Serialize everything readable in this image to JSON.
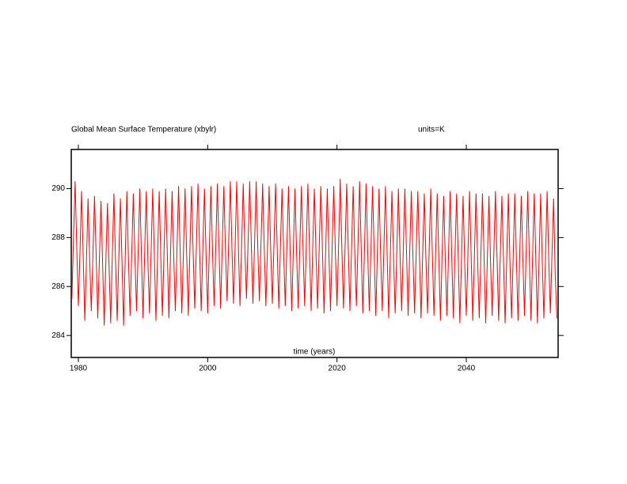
{
  "chart_data": {
    "type": "line",
    "title": "Global Mean Surface Temperature (xbylr)",
    "units": "units=K",
    "xlabel": "time (years)",
    "xlim": [
      1978.9,
      2054.2
    ],
    "xticks": [
      1980,
      2000,
      2020,
      2040
    ],
    "ylim": [
      283.1,
      291.6
    ],
    "yticks": [
      284,
      286,
      288,
      290
    ],
    "x": [
      1979,
      1979.25,
      1979.5,
      1979.75,
      1980,
      1980.25,
      1980.5,
      1980.75,
      1981,
      1981.25,
      1981.5,
      1981.75,
      1982,
      1982.25,
      1982.5,
      1982.75,
      1983,
      1983.25,
      1983.5,
      1983.75,
      1984,
      1984.25,
      1984.5,
      1984.75,
      1985,
      1985.25,
      1985.5,
      1985.75,
      1986,
      1986.25,
      1986.5,
      1986.75,
      1987,
      1987.25,
      1987.5,
      1987.75,
      1988,
      1988.25,
      1988.5,
      1988.75,
      1989,
      1989.25,
      1989.5,
      1989.75,
      1990,
      1990.25,
      1990.5,
      1990.75,
      1991,
      1991.25,
      1991.5,
      1991.75,
      1992,
      1992.25,
      1992.5,
      1992.75,
      1993,
      1993.25,
      1993.5,
      1993.75,
      1994,
      1994.25,
      1994.5,
      1994.75,
      1995,
      1995.25,
      1995.5,
      1995.75,
      1996,
      1996.25,
      1996.5,
      1996.75,
      1997,
      1997.25,
      1997.5,
      1997.75,
      1998,
      1998.25,
      1998.5,
      1998.75,
      1999,
      1999.25,
      1999.5,
      1999.75,
      2000,
      2000.25,
      2000.5,
      2000.75,
      2001,
      2001.25,
      2001.5,
      2001.75,
      2002,
      2002.25,
      2002.5,
      2002.75,
      2003,
      2003.25,
      2003.5,
      2003.75,
      2004,
      2004.25,
      2004.5,
      2004.75,
      2005,
      2005.25,
      2005.5,
      2005.75,
      2006,
      2006.25,
      2006.5,
      2006.75,
      2007,
      2007.25,
      2007.5,
      2007.75,
      2008,
      2008.25,
      2008.5,
      2008.75,
      2009,
      2009.25,
      2009.5,
      2009.75,
      2010,
      2010.25,
      2010.5,
      2010.75,
      2011,
      2011.25,
      2011.5,
      2011.75,
      2012,
      2012.25,
      2012.5,
      2012.75,
      2013,
      2013.25,
      2013.5,
      2013.75,
      2014,
      2014.25,
      2014.5,
      2014.75,
      2015,
      2015.25,
      2015.5,
      2015.75,
      2016,
      2016.25,
      2016.5,
      2016.75,
      2017,
      2017.25,
      2017.5,
      2017.75,
      2018,
      2018.25,
      2018.5,
      2018.75,
      2019,
      2019.25,
      2019.5,
      2019.75,
      2020,
      2020.25,
      2020.5,
      2020.75,
      2021,
      2021.25,
      2021.5,
      2021.75,
      2022,
      2022.25,
      2022.5,
      2022.75,
      2023,
      2023.25,
      2023.5,
      2023.75,
      2024,
      2024.25,
      2024.5,
      2024.75,
      2025,
      2025.25,
      2025.5,
      2025.75,
      2026,
      2026.25,
      2026.5,
      2026.75,
      2027,
      2027.25,
      2027.5,
      2027.75,
      2028,
      2028.25,
      2028.5,
      2028.75,
      2029,
      2029.25,
      2029.5,
      2029.75,
      2030,
      2030.25,
      2030.5,
      2030.75,
      2031,
      2031.25,
      2031.5,
      2031.75,
      2032,
      2032.25,
      2032.5,
      2032.75,
      2033,
      2033.25,
      2033.5,
      2033.75,
      2034,
      2034.25,
      2034.5,
      2034.75,
      2035,
      2035.25,
      2035.5,
      2035.75,
      2036,
      2036.25,
      2036.5,
      2036.75,
      2037,
      2037.25,
      2037.5,
      2037.75,
      2038,
      2038.25,
      2038.5,
      2038.75,
      2039,
      2039.25,
      2039.5,
      2039.75,
      2040,
      2040.25,
      2040.5,
      2040.75,
      2041,
      2041.25,
      2041.5,
      2041.75,
      2042,
      2042.25,
      2042.5,
      2042.75,
      2043,
      2043.25,
      2043.5,
      2043.75,
      2044,
      2044.25,
      2044.5,
      2044.75,
      2045,
      2045.25,
      2045.5,
      2045.75,
      2046,
      2046.25,
      2046.5,
      2046.75,
      2047,
      2047.25,
      2047.5,
      2047.75,
      2048,
      2048.25,
      2048.5,
      2048.75,
      2049,
      2049.25,
      2049.5,
      2049.75,
      2050,
      2050.25,
      2050.5,
      2050.75,
      2051,
      2051.25,
      2051.5,
      2051.75,
      2052,
      2052.25,
      2052.5,
      2052.75,
      2053,
      2053.25,
      2053.5,
      2053.75,
      2054
    ],
    "series": [
      {
        "color": "#ff0000",
        "values": [
          285.5,
          288.0,
          290.3,
          287.6,
          285.2,
          287.4,
          289.9,
          287.2,
          284.6,
          287.0,
          289.6,
          287.1,
          285.0,
          287.3,
          289.7,
          287.3,
          284.7,
          287.1,
          289.5,
          286.9,
          284.4,
          287.0,
          289.4,
          286.8,
          284.5,
          287.2,
          289.8,
          287.0,
          284.6,
          287.1,
          289.6,
          287.0,
          284.4,
          287.2,
          289.9,
          287.1,
          284.8,
          287.3,
          289.8,
          287.2,
          285.0,
          287.4,
          290.0,
          287.3,
          284.7,
          287.3,
          289.9,
          287.1,
          284.9,
          287.4,
          290.0,
          287.3,
          284.6,
          287.2,
          289.9,
          287.2,
          284.8,
          287.4,
          290.0,
          287.4,
          284.7,
          287.3,
          289.9,
          287.2,
          285.0,
          287.5,
          290.1,
          287.4,
          284.9,
          287.4,
          290.0,
          287.3,
          284.8,
          287.5,
          290.1,
          287.4,
          285.1,
          287.6,
          290.2,
          287.5,
          285.0,
          287.5,
          290.0,
          287.3,
          284.9,
          287.5,
          290.1,
          287.4,
          285.2,
          287.6,
          290.2,
          287.6,
          285.1,
          287.6,
          290.1,
          287.5,
          285.4,
          287.8,
          290.3,
          287.6,
          285.3,
          287.7,
          290.3,
          287.6,
          285.2,
          287.7,
          290.2,
          287.5,
          285.5,
          287.8,
          290.3,
          287.7,
          285.3,
          287.7,
          290.3,
          287.6,
          285.4,
          287.8,
          290.2,
          287.6,
          285.2,
          287.6,
          290.1,
          287.5,
          285.3,
          287.7,
          290.2,
          287.6,
          285.1,
          287.6,
          290.0,
          287.4,
          285.2,
          287.6,
          290.1,
          287.5,
          285.0,
          287.5,
          290.0,
          287.4,
          285.1,
          287.6,
          290.1,
          287.5,
          285.2,
          287.7,
          290.2,
          287.5,
          285.0,
          287.6,
          290.0,
          287.4,
          285.1,
          287.6,
          290.1,
          287.5,
          284.9,
          287.5,
          290.0,
          287.3,
          285.0,
          287.6,
          290.1,
          287.4,
          285.2,
          287.7,
          290.4,
          287.6,
          285.1,
          287.6,
          290.2,
          287.5,
          285.0,
          287.5,
          290.1,
          287.4,
          285.2,
          287.7,
          290.3,
          287.5,
          284.9,
          287.5,
          290.2,
          287.4,
          285.0,
          287.5,
          290.1,
          287.4,
          284.8,
          287.4,
          290.0,
          287.3,
          285.0,
          287.5,
          290.1,
          287.4,
          284.7,
          287.3,
          289.9,
          287.2,
          284.9,
          287.4,
          290.0,
          287.3,
          285.0,
          287.5,
          290.0,
          287.4,
          284.8,
          287.4,
          289.9,
          287.2,
          284.9,
          287.4,
          289.9,
          287.3,
          284.7,
          287.3,
          289.8,
          287.2,
          284.9,
          287.4,
          290.0,
          287.3,
          284.8,
          287.3,
          289.8,
          287.2,
          284.6,
          287.2,
          289.7,
          287.1,
          284.8,
          287.3,
          289.9,
          287.2,
          284.7,
          287.3,
          289.8,
          287.2,
          284.5,
          287.1,
          289.7,
          287.0,
          284.8,
          287.3,
          289.9,
          287.2,
          284.6,
          287.2,
          289.8,
          287.1,
          284.7,
          287.3,
          289.8,
          287.2,
          284.5,
          287.1,
          289.7,
          287.0,
          284.8,
          287.3,
          289.9,
          287.2,
          284.6,
          287.2,
          289.7,
          287.1,
          284.5,
          287.1,
          289.8,
          287.0,
          284.7,
          287.2,
          289.8,
          287.1,
          284.6,
          287.2,
          289.7,
          287.1,
          284.8,
          287.3,
          289.9,
          287.2,
          284.6,
          287.2,
          289.8,
          287.1,
          284.5,
          287.1,
          289.8,
          287.0,
          284.7,
          287.2,
          289.9,
          287.1,
          284.9,
          287.3,
          289.6,
          286.5,
          284.7
        ]
      }
    ]
  }
}
